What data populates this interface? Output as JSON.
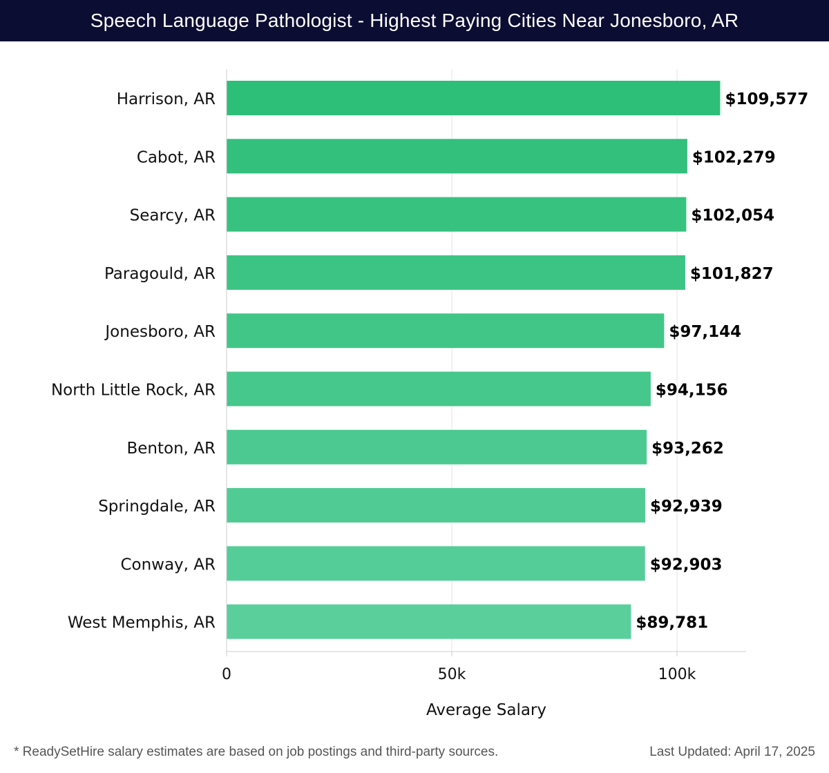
{
  "header": {
    "title": "Speech Language Pathologist - Highest Paying Cities Near Jonesboro, AR"
  },
  "chart_data": {
    "type": "bar",
    "orientation": "horizontal",
    "categories": [
      "Harrison, AR",
      "Cabot, AR",
      "Searcy, AR",
      "Paragould, AR",
      "Jonesboro, AR",
      "North Little Rock, AR",
      "Benton, AR",
      "Springdale, AR",
      "Conway, AR",
      "West Memphis, AR"
    ],
    "values": [
      109577,
      102279,
      102054,
      101827,
      97144,
      94156,
      93262,
      92939,
      92903,
      89781
    ],
    "value_labels": [
      "$109,577",
      "$102,279",
      "$102,054",
      "$101,827",
      "$97,144",
      "$94,156",
      "$93,262",
      "$92,939",
      "$92,903",
      "$89,781"
    ],
    "xlabel": "Average Salary",
    "ylabel": "",
    "xlim": [
      0,
      115000
    ],
    "xticks": [
      0,
      50000,
      100000
    ],
    "xtick_labels": [
      "0",
      "50k",
      "100k"
    ],
    "grid": "vertical",
    "colors": {
      "bar_top": "#2dbe78",
      "bar_bottom": "#5acf9c",
      "title_bg": "#0c0d33"
    }
  },
  "footer": {
    "note": "* ReadySetHire salary estimates are based on job postings and third-party sources.",
    "updated": "Last Updated: April 17, 2025"
  }
}
